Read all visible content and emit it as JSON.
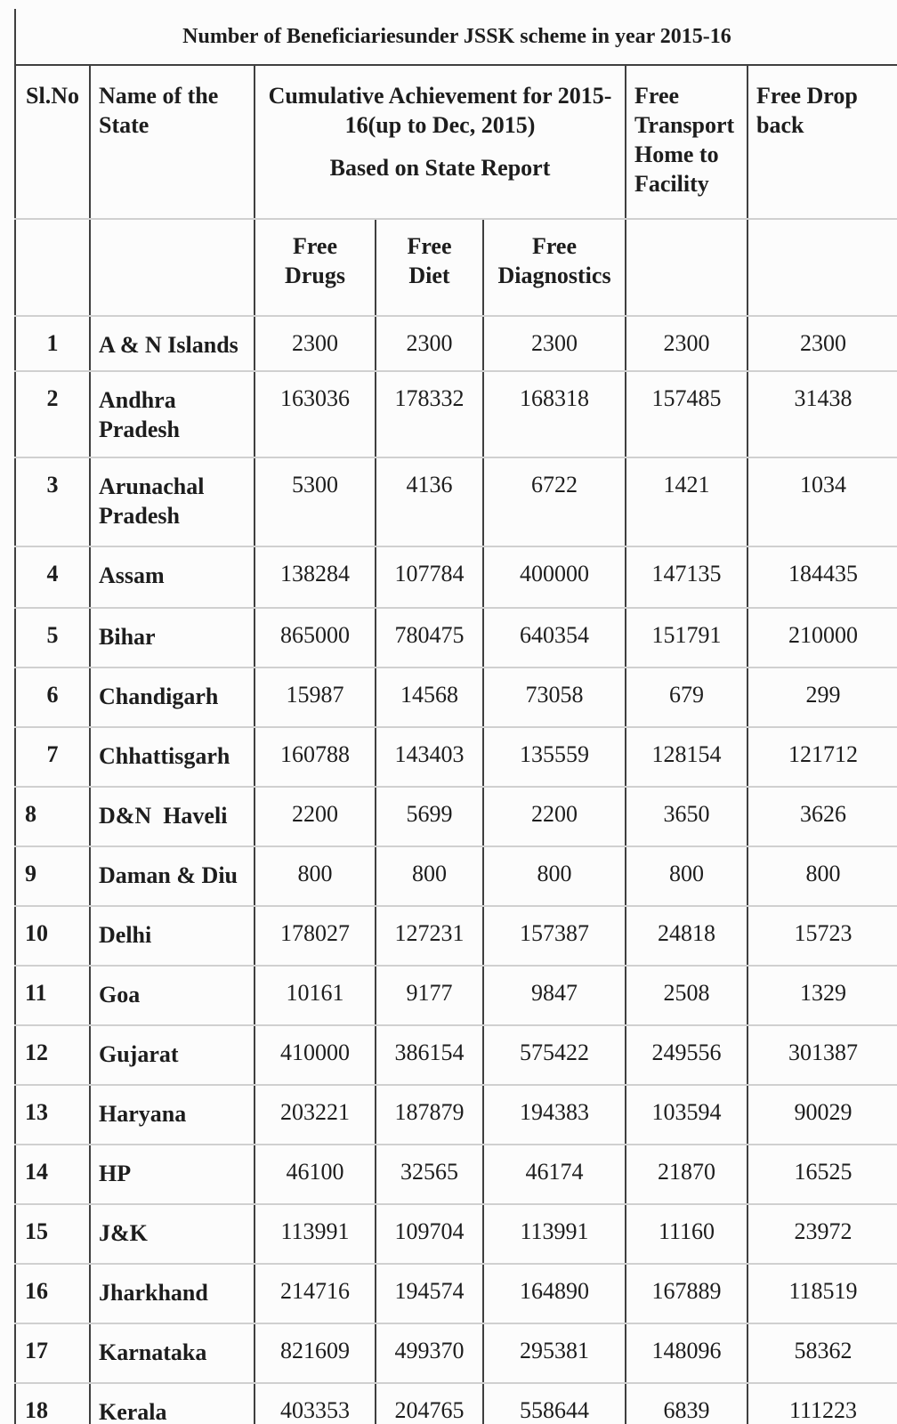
{
  "table": {
    "title": "Number of Beneficiariesunder JSSK scheme in year 2015-16",
    "headers": {
      "sl_no": "Sl.No",
      "state": "Name of the\nState",
      "cumulative_line1": "Cumulative Achievement for 2015-\n16(up to Dec, 2015)",
      "cumulative_line2": "Based on State Report",
      "free_transport": "Free\nTransport\nHome to\nFacility",
      "free_drop_back": "Free Drop\nback",
      "sub_free_drugs": "Free\nDrugs",
      "sub_free_diet": "Free\nDiet",
      "sub_free_diagnostics": "Free\nDiagnostics"
    },
    "rows": [
      {
        "sl_no": "1",
        "state": "A & N Islands",
        "free_drugs": "2300",
        "free_diet": "2300",
        "free_diagnostics": "2300",
        "free_transport": "2300",
        "free_drop_back": "2300"
      },
      {
        "sl_no": "2",
        "state": "Andhra Pradesh",
        "free_drugs": "163036",
        "free_diet": "178332",
        "free_diagnostics": "168318",
        "free_transport": "157485",
        "free_drop_back": "31438"
      },
      {
        "sl_no": "3",
        "state": "Arunachal Pradesh",
        "free_drugs": "5300",
        "free_diet": "4136",
        "free_diagnostics": "6722",
        "free_transport": "1421",
        "free_drop_back": "1034"
      },
      {
        "sl_no": "4",
        "state": "Assam",
        "free_drugs": "138284",
        "free_diet": "107784",
        "free_diagnostics": "400000",
        "free_transport": "147135",
        "free_drop_back": "184435"
      },
      {
        "sl_no": "5",
        "state": "Bihar",
        "free_drugs": "865000",
        "free_diet": "780475",
        "free_diagnostics": "640354",
        "free_transport": "151791",
        "free_drop_back": "210000"
      },
      {
        "sl_no": "6",
        "state": "Chandigarh",
        "free_drugs": "15987",
        "free_diet": "14568",
        "free_diagnostics": "73058",
        "free_transport": "679",
        "free_drop_back": "299"
      },
      {
        "sl_no": "7",
        "state": "Chhattisgarh",
        "free_drugs": "160788",
        "free_diet": "143403",
        "free_diagnostics": "135559",
        "free_transport": "128154",
        "free_drop_back": "121712"
      },
      {
        "sl_no": "8",
        "state": "D&N  Haveli",
        "free_drugs": "2200",
        "free_diet": "5699",
        "free_diagnostics": "2200",
        "free_transport": "3650",
        "free_drop_back": "3626"
      },
      {
        "sl_no": "9",
        "state": "Daman & Diu",
        "free_drugs": "800",
        "free_diet": "800",
        "free_diagnostics": "800",
        "free_transport": "800",
        "free_drop_back": "800"
      },
      {
        "sl_no": "10",
        "state": "Delhi",
        "free_drugs": "178027",
        "free_diet": "127231",
        "free_diagnostics": "157387",
        "free_transport": "24818",
        "free_drop_back": "15723"
      },
      {
        "sl_no": "11",
        "state": "Goa",
        "free_drugs": "10161",
        "free_diet": "9177",
        "free_diagnostics": "9847",
        "free_transport": "2508",
        "free_drop_back": "1329"
      },
      {
        "sl_no": "12",
        "state": "Gujarat",
        "free_drugs": "410000",
        "free_diet": "386154",
        "free_diagnostics": "575422",
        "free_transport": "249556",
        "free_drop_back": "301387"
      },
      {
        "sl_no": "13",
        "state": "Haryana",
        "free_drugs": "203221",
        "free_diet": "187879",
        "free_diagnostics": "194383",
        "free_transport": "103594",
        "free_drop_back": "90029"
      },
      {
        "sl_no": "14",
        "state": "HP",
        "free_drugs": "46100",
        "free_diet": "32565",
        "free_diagnostics": "46174",
        "free_transport": "21870",
        "free_drop_back": "16525"
      },
      {
        "sl_no": "15",
        "state": "J&K",
        "free_drugs": "113991",
        "free_diet": "109704",
        "free_diagnostics": "113991",
        "free_transport": "11160",
        "free_drop_back": "23972"
      },
      {
        "sl_no": "16",
        "state": "Jharkhand",
        "free_drugs": "214716",
        "free_diet": "194574",
        "free_diagnostics": "164890",
        "free_transport": "167889",
        "free_drop_back": "118519"
      },
      {
        "sl_no": "17",
        "state": "Karnataka",
        "free_drugs": "821609",
        "free_diet": "499370",
        "free_diagnostics": "295381",
        "free_transport": "148096",
        "free_drop_back": "58362"
      },
      {
        "sl_no": "18",
        "state": "Kerala",
        "free_drugs": "403353",
        "free_diet": "204765",
        "free_diagnostics": "558644",
        "free_transport": "6839",
        "free_drop_back": "111223"
      }
    ],
    "style": {
      "ink_color": "#1d1d1d",
      "vertical_line_color": "#3f3f3f",
      "horizontal_line_color": "#d0d0d0"
    }
  }
}
